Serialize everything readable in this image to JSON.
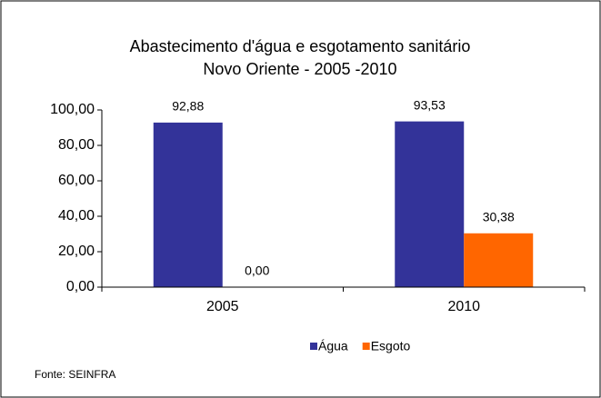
{
  "chart_data": {
    "type": "bar",
    "title": "Abastecimento d'água e esgotamento sanitário",
    "subtitle": "Novo Oriente - 2005 -2010",
    "categories": [
      "2005",
      "2010"
    ],
    "series": [
      {
        "name": "Água",
        "color": "#333399",
        "values": [
          92.88,
          93.53
        ],
        "value_labels": [
          "92,88",
          "93,53"
        ]
      },
      {
        "name": "Esgoto",
        "color": "#ff6600",
        "values": [
          0,
          30.38
        ],
        "value_labels": [
          "0,00",
          "30,38"
        ]
      }
    ],
    "ylim": [
      0,
      100
    ],
    "yticks": [
      {
        "value": 0,
        "label": "0,00"
      },
      {
        "value": 20,
        "label": "20,00"
      },
      {
        "value": 40,
        "label": "40,00"
      },
      {
        "value": 60,
        "label": "60,00"
      },
      {
        "value": 80,
        "label": "80,00"
      },
      {
        "value": 100,
        "label": "100,00"
      }
    ],
    "grid": false,
    "legend": "bottom",
    "source": "Fonte: SEINFRA"
  }
}
